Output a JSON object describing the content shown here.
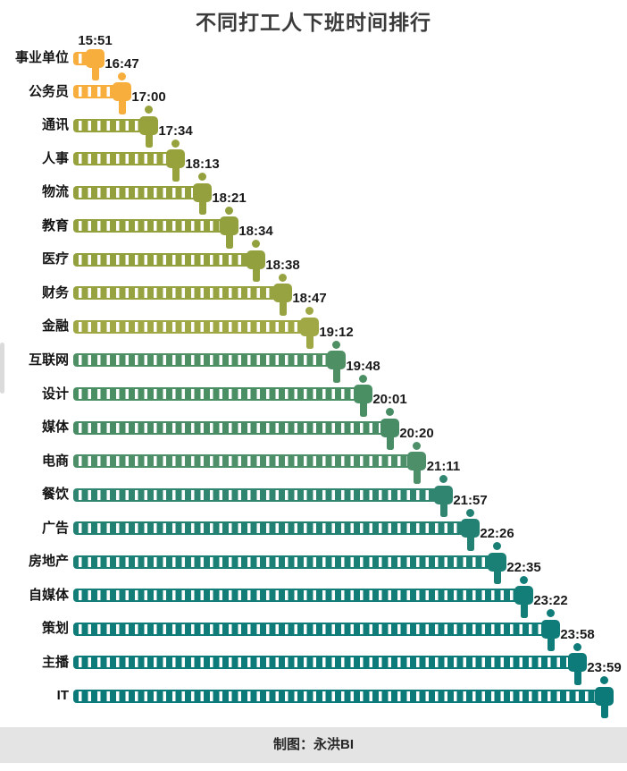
{
  "title": "不同打工人下班时间排行",
  "footer": {
    "text": "制图：永洪BI"
  },
  "icons": {
    "bar_end_marker": "person-icon (circle head, rounded-square body, leg below bar end)"
  },
  "colors": {
    "background": "#FFFFFF",
    "title_text": "#3A3A3A",
    "label_text": "#141414",
    "stripe": "#FFFFFF",
    "footer_bg": "#E4E4E4",
    "footer_text": "#262626",
    "scrollbar_thumb": "#DBDBDB"
  },
  "chart_data": {
    "type": "bar",
    "orientation": "horizontal",
    "title": "不同打工人下班时间排行",
    "xlabel": "",
    "ylabel": "",
    "legend": "none",
    "grid": false,
    "axis": "hidden; bar lengths increase in equal rank steps, each bar ends with a person icon and a time data label above the icon",
    "value_unit": "off-work time (24h HH:MM)",
    "categories": [
      "事业单位",
      "公务员",
      "通讯",
      "人事",
      "物流",
      "教育",
      "医疗",
      "财务",
      "金融",
      "互联网",
      "设计",
      "媒体",
      "电商",
      "餐饮",
      "广告",
      "房地产",
      "自媒体",
      "策划",
      "主播",
      "IT"
    ],
    "values": [
      "15:51",
      "16:47",
      "17:00",
      "17:34",
      "18:13",
      "18:21",
      "18:34",
      "18:38",
      "18:47",
      "19:12",
      "19:48",
      "20:01",
      "20:20",
      "21:11",
      "21:57",
      "22:26",
      "22:35",
      "23:22",
      "23:58",
      "23:59"
    ],
    "values_minutes": [
      951,
      1007,
      1020,
      1054,
      1093,
      1101,
      1114,
      1118,
      1127,
      1152,
      1188,
      1201,
      1220,
      1271,
      1317,
      1346,
      1355,
      1402,
      1438,
      1439
    ],
    "bar_colors": [
      "#F8AE3C",
      "#F8AE3C",
      "#97A23C",
      "#97A23C",
      "#94A03D",
      "#93A03E",
      "#93A03E",
      "#97A340",
      "#9FA845",
      "#4E8F63",
      "#4A8E64",
      "#478C65",
      "#4C8F68",
      "#2F8570",
      "#228172",
      "#1A8076",
      "#137E78",
      "#0F7C79",
      "#0D7B79",
      "#0C7A78"
    ]
  }
}
